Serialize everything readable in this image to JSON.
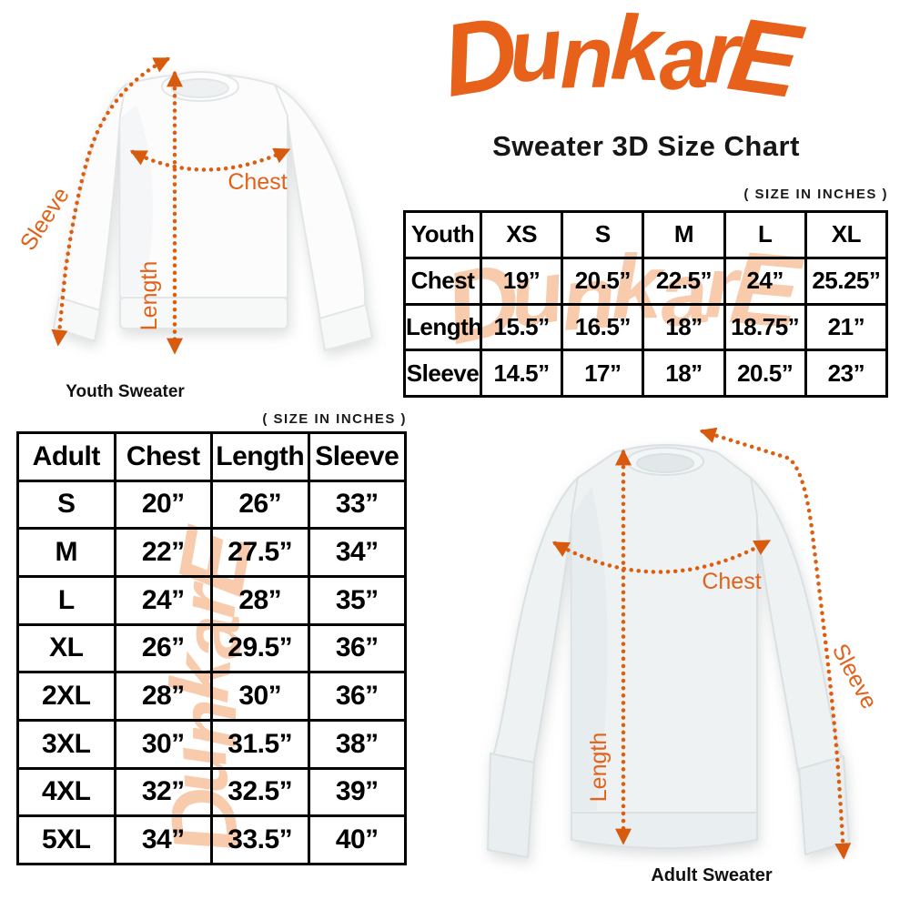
{
  "brand": {
    "logo": "DunkarE",
    "title": "Sweater 3D Size Chart"
  },
  "notes": {
    "youth_units": "( SIZE IN INCHES )",
    "adult_units": "( SIZE IN INCHES )"
  },
  "youth_illustration": {
    "caption": "Youth Sweater",
    "labels": {
      "sleeve": "Sleeve",
      "length": "Length",
      "chest": "Chest"
    }
  },
  "adult_illustration": {
    "caption": "Adult Sweater",
    "labels": {
      "sleeve": "Sleeve",
      "length": "Length",
      "chest": "Chest"
    }
  },
  "youth_table": {
    "corner": "Youth",
    "sizes": [
      "XS",
      "S",
      "M",
      "L",
      "XL"
    ],
    "rows": [
      {
        "label": "Chest",
        "values": [
          "19”",
          "20.5”",
          "22.5”",
          "24”",
          "25.25”"
        ]
      },
      {
        "label": "Length",
        "values": [
          "15.5”",
          "16.5”",
          "18”",
          "18.75”",
          "21”"
        ]
      },
      {
        "label": "Sleeve",
        "values": [
          "14.5”",
          "17”",
          "18”",
          "20.5”",
          "23”"
        ]
      }
    ]
  },
  "adult_table": {
    "headers": [
      "Adult",
      "Chest",
      "Length",
      "Sleeve"
    ],
    "rows": [
      {
        "label": "S",
        "values": [
          "20”",
          "26”",
          "33”"
        ]
      },
      {
        "label": "M",
        "values": [
          "22”",
          "27.5”",
          "34”"
        ]
      },
      {
        "label": "L",
        "values": [
          "24”",
          "28”",
          "35”"
        ]
      },
      {
        "label": "XL",
        "values": [
          "26”",
          "29.5”",
          "36”"
        ]
      },
      {
        "label": "2XL",
        "values": [
          "28”",
          "30”",
          "36”"
        ]
      },
      {
        "label": "3XL",
        "values": [
          "30”",
          "31.5”",
          "38”"
        ]
      },
      {
        "label": "4XL",
        "values": [
          "32”",
          "32.5”",
          "39”"
        ]
      },
      {
        "label": "5XL",
        "values": [
          "34”",
          "33.5”",
          "40”"
        ]
      }
    ]
  },
  "chart_data": [
    {
      "type": "table",
      "title": "Youth Sweater 3D Size Chart ( size in inches )",
      "columns": [
        "Youth",
        "XS",
        "S",
        "M",
        "L",
        "XL"
      ],
      "rows": [
        [
          "Chest",
          19,
          20.5,
          22.5,
          24,
          25.25
        ],
        [
          "Length",
          15.5,
          16.5,
          18,
          18.75,
          21
        ],
        [
          "Sleeve",
          14.5,
          17,
          18,
          20.5,
          23
        ]
      ]
    },
    {
      "type": "table",
      "title": "Adult Sweater 3D Size Chart ( size in inches )",
      "columns": [
        "Adult",
        "Chest",
        "Length",
        "Sleeve"
      ],
      "rows": [
        [
          "S",
          20,
          26,
          33
        ],
        [
          "M",
          22,
          27.5,
          34
        ],
        [
          "L",
          24,
          28,
          35
        ],
        [
          "XL",
          26,
          29.5,
          36
        ],
        [
          "2XL",
          28,
          30,
          36
        ],
        [
          "3XL",
          30,
          31.5,
          38
        ],
        [
          "4XL",
          32,
          32.5,
          39
        ],
        [
          "5XL",
          34,
          33.5,
          40
        ]
      ]
    }
  ],
  "colors": {
    "brand_orange": "#e8611a",
    "measure_orange": "#dc5e10",
    "watermark_peach": "#f7cbac",
    "table_border": "#000000",
    "sweater_white": "#fcfcfd",
    "sweater_gray": "#eef2f3"
  }
}
